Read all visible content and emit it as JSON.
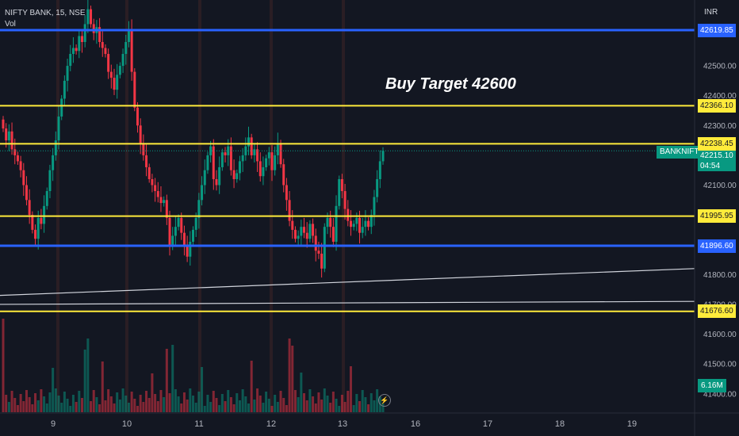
{
  "legend": {
    "symbol": "NIFTY BANK, 15, NSE",
    "volume_label": "Vol"
  },
  "currency": "INR",
  "annotation": "Buy Target 42600",
  "symbol_tag": "BANKNIFTY",
  "current_price": "42215.10",
  "countdown": "04:54",
  "volume_value": "6.16M",
  "price_axis": {
    "ticks": [
      "42500.00",
      "42400.00",
      "42300.00",
      "42100.00",
      "41800.00",
      "41700.00",
      "41600.00",
      "41500.00",
      "41400.00"
    ]
  },
  "levels": [
    {
      "price": "42619.85",
      "color": "blue"
    },
    {
      "price": "42366.10",
      "color": "yellow"
    },
    {
      "price": "42238.45",
      "color": "yellow"
    },
    {
      "price": "41995.95",
      "color": "yellow"
    },
    {
      "price": "41896.60",
      "color": "blue"
    },
    {
      "price": "41676.60",
      "color": "yellow"
    }
  ],
  "time_axis": {
    "ticks": [
      "9",
      "10",
      "11",
      "12",
      "13",
      "16",
      "17",
      "18",
      "19"
    ]
  },
  "colors": {
    "up": "#089981",
    "down": "#f23645",
    "blue_level": "#2962ff",
    "yellow_level": "#ffeb3b",
    "trend": "#d1d4dc"
  },
  "chart_data": {
    "type": "candlestick",
    "symbol": "NIFTY BANK",
    "interval": "15",
    "exchange": "NSE",
    "closes": [
      42290,
      42250,
      42280,
      42220,
      42200,
      42180,
      42150,
      42100,
      42050,
      42000,
      41950,
      41920,
      41990,
      41970,
      42030,
      42080,
      42150,
      42200,
      42250,
      42330,
      42390,
      42450,
      42500,
      42540,
      42560,
      42550,
      42600,
      42580,
      42640,
      42690,
      42640,
      42610,
      42630,
      42580,
      42560,
      42540,
      42480,
      42460,
      42420,
      42470,
      42500,
      42540,
      42580,
      42620,
      42480,
      42360,
      42300,
      42240,
      42200,
      42160,
      42120,
      42100,
      42080,
      42060,
      42040,
      42050,
      41990,
      41900,
      41930,
      41960,
      41990,
      41940,
      41900,
      41860,
      41910,
      41950,
      41990,
      42050,
      42100,
      42150,
      42200,
      42230,
      42120,
      42100,
      42160,
      42210,
      42200,
      42230,
      42150,
      42120,
      42140,
      42180,
      42200,
      42230,
      42260,
      42200,
      42220,
      42180,
      42130,
      42160,
      42190,
      42210,
      42150,
      42200,
      42240,
      42170,
      42100,
      42050,
      41980,
      41950,
      41920,
      41930,
      41960,
      41940,
      41920,
      41970,
      41930,
      41880,
      41870,
      41820,
      41960,
      41990,
      41960,
      41910,
      42030,
      42120,
      42080,
      42020,
      41980,
      41960,
      41970,
      41990,
      41940,
      41960,
      41980,
      41960,
      42000,
      42060,
      42120,
      42180,
      42215
    ],
    "price_range": [
      41380,
      42740
    ],
    "trendlines": [
      {
        "from": {
          "x": 0,
          "price": 41730
        },
        "to": {
          "x": 1,
          "price": 41820
        }
      },
      {
        "from": {
          "x": 0,
          "price": 41700
        },
        "to": {
          "x": 1,
          "price": 41710
        }
      }
    ]
  }
}
